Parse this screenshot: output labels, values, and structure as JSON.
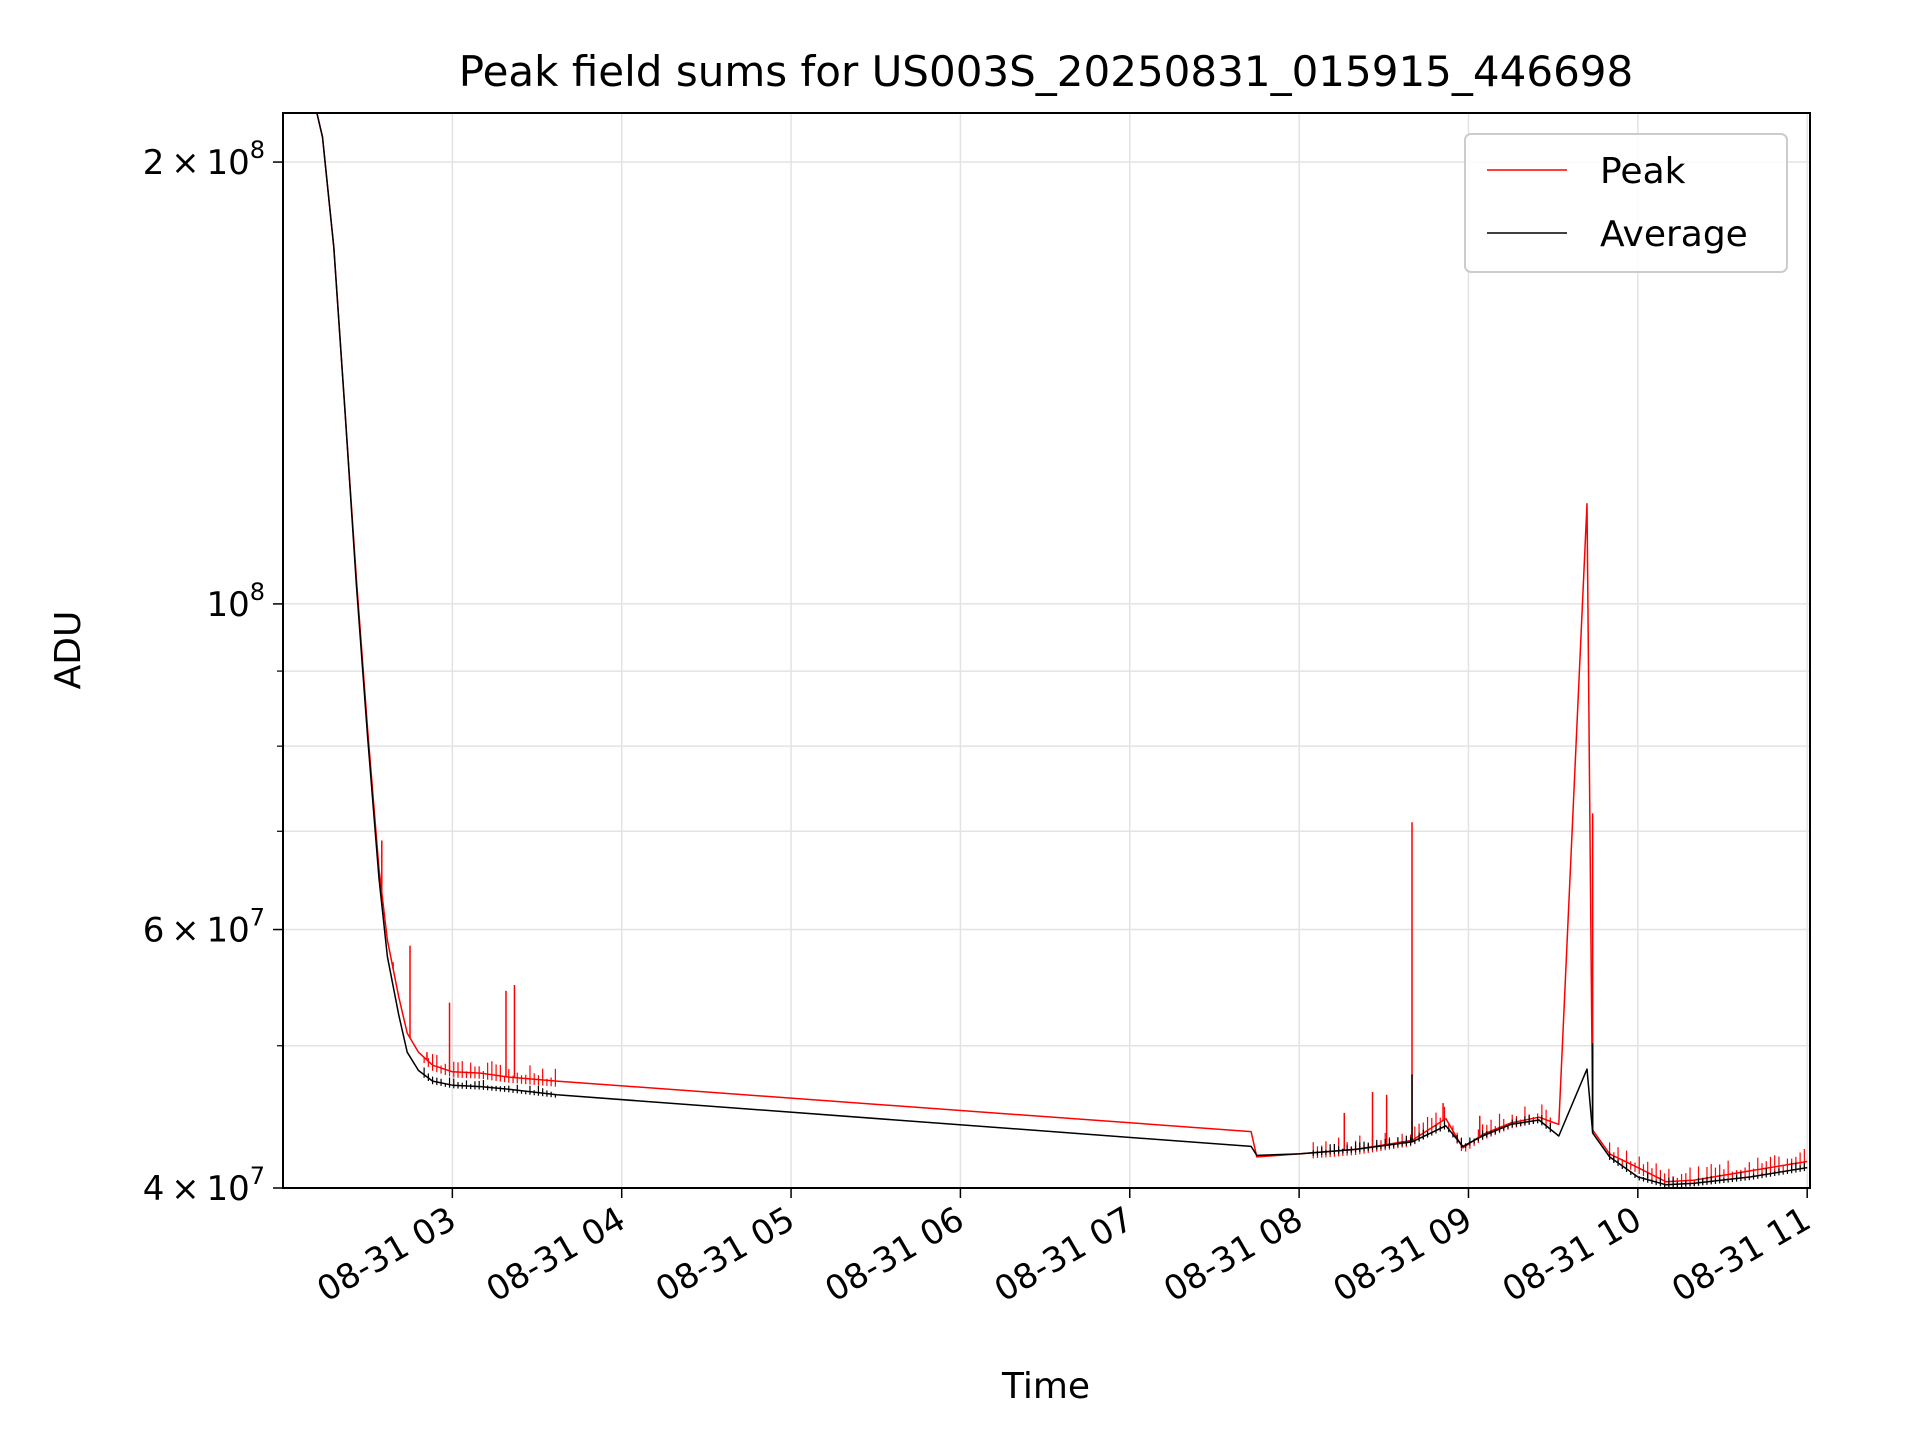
{
  "chart_data": {
    "type": "line",
    "title": "Peak field sums for US003S_20250831_015915_446698",
    "xlabel": "Time",
    "ylabel": "ADU",
    "yscale": "log",
    "ylim": [
      40000000,
      216000000
    ],
    "xlim": [
      "08-31 02:00",
      "08-31 11:01"
    ],
    "grid": true,
    "legend_position": "top-right",
    "x_ticks": [
      "08-31 03",
      "08-31 04",
      "08-31 05",
      "08-31 06",
      "08-31 07",
      "08-31 08",
      "08-31 09",
      "08-31 10",
      "08-31 11"
    ],
    "y_ticks": [
      {
        "value": 40000000,
        "mantissa": "4",
        "exponent": "7"
      },
      {
        "value": 60000000,
        "mantissa": "6",
        "exponent": "7"
      },
      {
        "value": 100000000,
        "mantissa": "",
        "exponent": "8"
      },
      {
        "value": 200000000,
        "mantissa": "2",
        "exponent": "8"
      }
    ],
    "y_minor_ticks": [
      50000000,
      70000000,
      80000000,
      90000000
    ],
    "series": [
      {
        "name": "Peak",
        "color": "#ff0000",
        "points": [
          [
            "08-31 02:00",
            216000000
          ],
          [
            "08-31 02:12",
            216000000
          ],
          [
            "08-31 02:14",
            208000000
          ],
          [
            "08-31 02:18",
            175000000
          ],
          [
            "08-31 02:22",
            135000000
          ],
          [
            "08-31 02:26",
            104000000
          ],
          [
            "08-31 02:30",
            82000000
          ],
          [
            "08-31 02:34",
            66000000
          ],
          [
            "08-31 02:37",
            59000000
          ],
          [
            "08-31 02:41",
            54000000
          ],
          [
            "08-31 02:44",
            51000000
          ],
          [
            "08-31 02:48",
            49500000
          ],
          [
            "08-31 02:53",
            48500000
          ],
          [
            "08-31 03:00",
            48000000
          ],
          [
            "08-31 03:10",
            47900000
          ],
          [
            "08-31 03:20",
            47600000
          ],
          [
            "08-31 03:37",
            47300000
          ],
          [
            "08-31 07:43",
            43700000
          ],
          [
            "08-31 07:45",
            42000000
          ],
          [
            "08-31 08:00",
            42200000
          ],
          [
            "08-31 08:20",
            42500000
          ],
          [
            "08-31 08:40",
            43100000
          ],
          [
            "08-31 08:52",
            44600000
          ],
          [
            "08-31 08:58",
            42600000
          ],
          [
            "08-31 09:05",
            43500000
          ],
          [
            "08-31 09:15",
            44300000
          ],
          [
            "08-31 09:25",
            44700000
          ],
          [
            "08-31 09:32",
            44200000
          ],
          [
            "08-31 09:42",
            117000000
          ],
          [
            "08-31 09:44",
            43800000
          ],
          [
            "08-31 09:50",
            42200000
          ],
          [
            "08-31 10:00",
            41300000
          ],
          [
            "08-31 10:10",
            40400000
          ],
          [
            "08-31 10:20",
            40500000
          ],
          [
            "08-31 10:40",
            41100000
          ],
          [
            "08-31 11:00",
            41700000
          ]
        ],
        "spikes": [
          [
            "08-31 02:35",
            69000000
          ],
          [
            "08-31 02:39",
            57000000
          ],
          [
            "08-31 02:45",
            58500000
          ],
          [
            "08-31 02:51",
            49500000
          ],
          [
            "08-31 02:59",
            53500000
          ],
          [
            "08-31 03:19",
            54500000
          ],
          [
            "08-31 03:22",
            55000000
          ],
          [
            "08-31 08:16",
            45000000
          ],
          [
            "08-31 08:26",
            46500000
          ],
          [
            "08-31 08:31",
            46300000
          ],
          [
            "08-31 08:40",
            71000000
          ],
          [
            "08-31 08:51",
            45700000
          ],
          [
            "08-31 09:04",
            44800000
          ],
          [
            "08-31 09:44",
            72000000
          ]
        ]
      },
      {
        "name": "Average",
        "color": "#000000",
        "points": [
          [
            "08-31 02:00",
            216000000
          ],
          [
            "08-31 02:12",
            216000000
          ],
          [
            "08-31 02:14",
            208000000
          ],
          [
            "08-31 02:18",
            175000000
          ],
          [
            "08-31 02:22",
            135000000
          ],
          [
            "08-31 02:26",
            103000000
          ],
          [
            "08-31 02:30",
            81000000
          ],
          [
            "08-31 02:34",
            65000000
          ],
          [
            "08-31 02:37",
            57500000
          ],
          [
            "08-31 02:41",
            52500000
          ],
          [
            "08-31 02:44",
            49500000
          ],
          [
            "08-31 02:48",
            48100000
          ],
          [
            "08-31 02:53",
            47300000
          ],
          [
            "08-31 03:00",
            47000000
          ],
          [
            "08-31 03:10",
            46900000
          ],
          [
            "08-31 03:20",
            46700000
          ],
          [
            "08-31 03:37",
            46300000
          ],
          [
            "08-31 07:43",
            42700000
          ],
          [
            "08-31 07:45",
            42100000
          ],
          [
            "08-31 08:00",
            42200000
          ],
          [
            "08-31 08:20",
            42500000
          ],
          [
            "08-31 08:40",
            43000000
          ],
          [
            "08-31 08:52",
            44100000
          ],
          [
            "08-31 08:58",
            42700000
          ],
          [
            "08-31 09:05",
            43400000
          ],
          [
            "08-31 09:15",
            44200000
          ],
          [
            "08-31 09:25",
            44500000
          ],
          [
            "08-31 09:32",
            43400000
          ],
          [
            "08-31 09:42",
            48200000
          ],
          [
            "08-31 09:44",
            43600000
          ],
          [
            "08-31 09:50",
            42000000
          ],
          [
            "08-31 10:00",
            40700000
          ],
          [
            "08-31 10:10",
            40200000
          ],
          [
            "08-31 10:20",
            40300000
          ],
          [
            "08-31 10:40",
            40700000
          ],
          [
            "08-31 11:00",
            41300000
          ]
        ],
        "spikes": [
          [
            "08-31 08:40",
            47800000
          ],
          [
            "08-31 09:44",
            50200000
          ]
        ]
      }
    ]
  }
}
